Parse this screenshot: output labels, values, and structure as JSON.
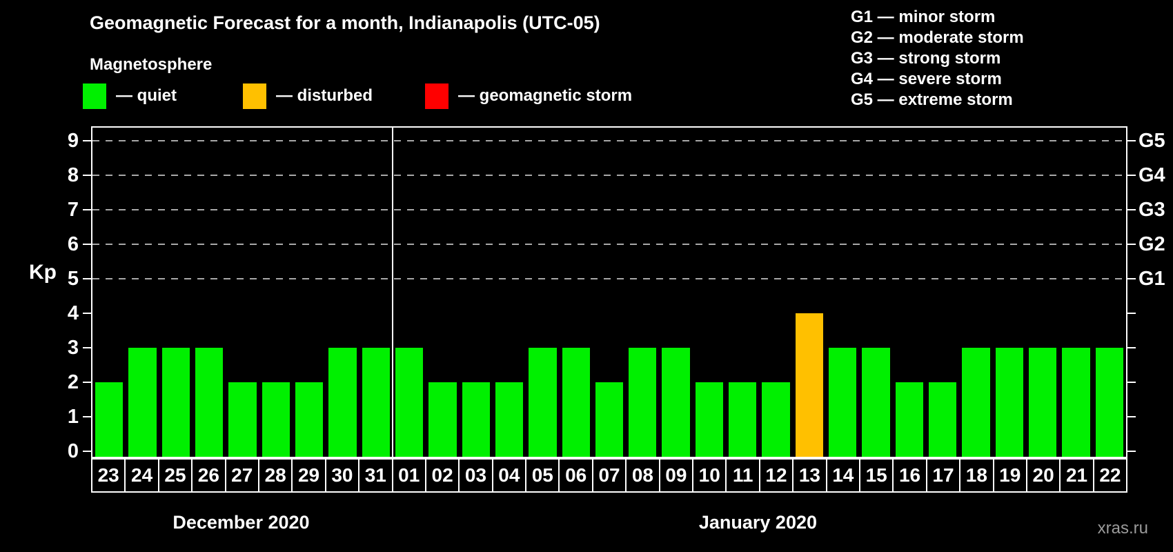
{
  "title": "Geomagnetic Forecast for a month, Indianapolis (UTC-05)",
  "subtitle": "Magnetosphere",
  "legend": [
    {
      "key": "quiet",
      "label": "— quiet",
      "color": "#00f000"
    },
    {
      "key": "disturbed",
      "label": "— disturbed",
      "color": "#ffc000"
    },
    {
      "key": "storm",
      "label": "— geomagnetic storm",
      "color": "#ff0000"
    }
  ],
  "storm_scale": [
    {
      "code": "G1",
      "label": "minor storm",
      "kp": 5
    },
    {
      "code": "G2",
      "label": "moderate storm",
      "kp": 6
    },
    {
      "code": "G3",
      "label": "strong storm",
      "kp": 7
    },
    {
      "code": "G4",
      "label": "severe storm",
      "kp": 8
    },
    {
      "code": "G5",
      "label": "extreme storm",
      "kp": 9
    }
  ],
  "watermark": "xras.ru",
  "chart_data": {
    "type": "bar",
    "title": "Geomagnetic Forecast for a month, Indianapolis (UTC-05)",
    "ylabel": "Kp",
    "ylim": [
      0,
      9.4
    ],
    "yticks": [
      0,
      1,
      2,
      3,
      4,
      5,
      6,
      7,
      8,
      9
    ],
    "gridlines_at_kp": [
      5,
      6,
      7,
      8,
      9
    ],
    "grid": "dashed-horizontal",
    "legend_position": "top-left",
    "colors": {
      "quiet": "#00f000",
      "disturbed": "#ffc000",
      "storm": "#ff0000"
    },
    "months": [
      {
        "label": "December 2020",
        "days": [
          {
            "day": "23",
            "kp": 2,
            "state": "quiet"
          },
          {
            "day": "24",
            "kp": 3,
            "state": "quiet"
          },
          {
            "day": "25",
            "kp": 3,
            "state": "quiet"
          },
          {
            "day": "26",
            "kp": 3,
            "state": "quiet"
          },
          {
            "day": "27",
            "kp": 2,
            "state": "quiet"
          },
          {
            "day": "28",
            "kp": 2,
            "state": "quiet"
          },
          {
            "day": "29",
            "kp": 2,
            "state": "quiet"
          },
          {
            "day": "30",
            "kp": 3,
            "state": "quiet"
          },
          {
            "day": "31",
            "kp": 3,
            "state": "quiet"
          }
        ]
      },
      {
        "label": "January 2020",
        "days": [
          {
            "day": "01",
            "kp": 3,
            "state": "quiet"
          },
          {
            "day": "02",
            "kp": 2,
            "state": "quiet"
          },
          {
            "day": "03",
            "kp": 2,
            "state": "quiet"
          },
          {
            "day": "04",
            "kp": 2,
            "state": "quiet"
          },
          {
            "day": "05",
            "kp": 3,
            "state": "quiet"
          },
          {
            "day": "06",
            "kp": 3,
            "state": "quiet"
          },
          {
            "day": "07",
            "kp": 2,
            "state": "quiet"
          },
          {
            "day": "08",
            "kp": 3,
            "state": "quiet"
          },
          {
            "day": "09",
            "kp": 3,
            "state": "quiet"
          },
          {
            "day": "10",
            "kp": 2,
            "state": "quiet"
          },
          {
            "day": "11",
            "kp": 2,
            "state": "quiet"
          },
          {
            "day": "12",
            "kp": 2,
            "state": "quiet"
          },
          {
            "day": "13",
            "kp": 4,
            "state": "disturbed"
          },
          {
            "day": "14",
            "kp": 3,
            "state": "quiet"
          },
          {
            "day": "15",
            "kp": 3,
            "state": "quiet"
          },
          {
            "day": "16",
            "kp": 2,
            "state": "quiet"
          },
          {
            "day": "17",
            "kp": 2,
            "state": "quiet"
          },
          {
            "day": "18",
            "kp": 3,
            "state": "quiet"
          },
          {
            "day": "19",
            "kp": 3,
            "state": "quiet"
          },
          {
            "day": "20",
            "kp": 3,
            "state": "quiet"
          },
          {
            "day": "21",
            "kp": 3,
            "state": "quiet"
          },
          {
            "day": "22",
            "kp": 3,
            "state": "quiet"
          }
        ]
      }
    ]
  }
}
